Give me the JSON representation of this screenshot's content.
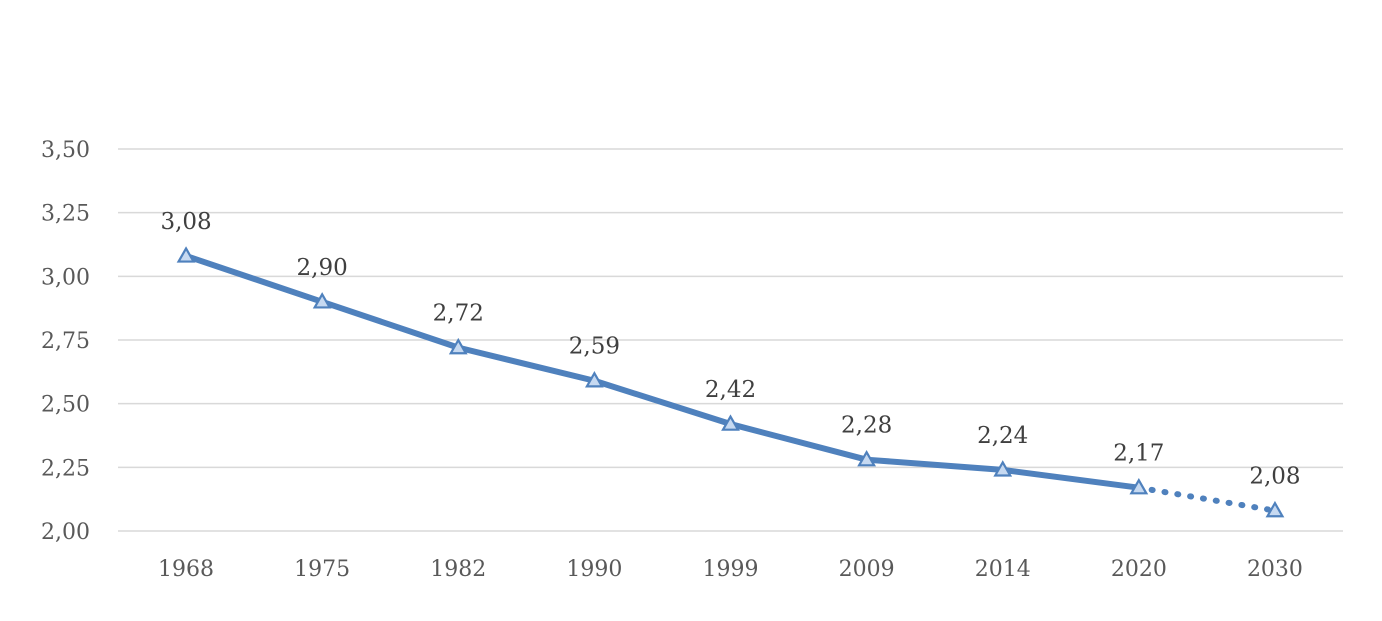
{
  "chart_data": {
    "type": "line",
    "categories": [
      "1968",
      "1975",
      "1982",
      "1990",
      "1999",
      "2009",
      "2014",
      "2020",
      "2030"
    ],
    "values": [
      3.08,
      2.9,
      2.72,
      2.59,
      2.42,
      2.28,
      2.24,
      2.17,
      2.08
    ],
    "data_labels": [
      "3,08",
      "2,90",
      "2,72",
      "2,59",
      "2,42",
      "2,28",
      "2,24",
      "2,17",
      "2,08"
    ],
    "y_ticks": [
      2.0,
      2.25,
      2.5,
      2.75,
      3.0,
      3.25,
      3.5
    ],
    "y_tick_labels": [
      "2,00",
      "2,25",
      "2,50",
      "2,75",
      "3,00",
      "3,25",
      "3,50"
    ],
    "ylim": [
      2.0,
      3.5
    ],
    "grid": true,
    "legend": "none",
    "projected_from_index": 7,
    "line_color": "#4f81bd",
    "marker": "triangle",
    "marker_fill": "#c6d9f1"
  }
}
